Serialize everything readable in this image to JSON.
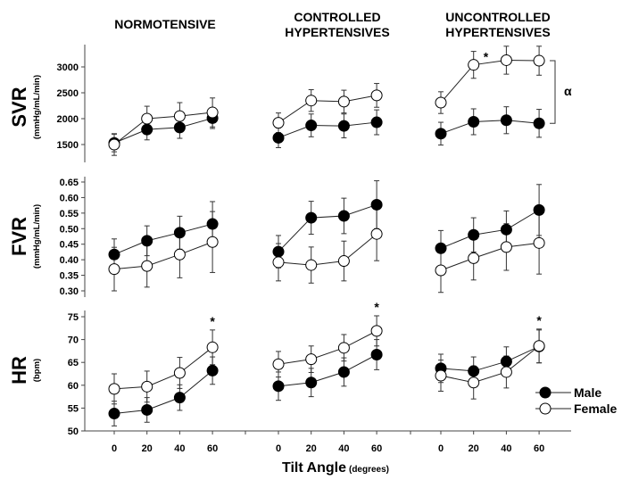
{
  "chart_data": {
    "type": "line",
    "x": [
      0,
      20,
      40,
      60
    ],
    "xlabel": "Tilt Angle",
    "xlabel_unit": "(degrees)",
    "groups": [
      {
        "title": [
          "NORMOTENSIVE"
        ]
      },
      {
        "title": [
          "CONTROLLED",
          "HYPERTENSIVES"
        ]
      },
      {
        "title": [
          "UNCONTROLLED",
          "HYPERTENSIVES"
        ]
      }
    ],
    "legend": {
      "position": "bottom-right",
      "entries": [
        {
          "name": "Male",
          "marker": "filled-circle"
        },
        {
          "name": "Female",
          "marker": "open-circle"
        }
      ]
    },
    "measures": [
      {
        "label": "SVR",
        "unit": "(mmHg/mL/min)",
        "ylim": [
          1160,
          3450
        ],
        "ticks": [
          1500,
          2000,
          2500,
          3000
        ],
        "tick_labels": [
          "1500",
          "2000",
          "2500",
          "3000"
        ],
        "panels": [
          {
            "male": [
              1530,
              1790,
              1830,
              2010
            ],
            "male_err": [
              170,
              200,
              210,
              200
            ],
            "female": [
              1500,
              2000,
              2050,
              2120
            ],
            "female_err": [
              210,
              240,
              260,
              280
            ],
            "stars": []
          },
          {
            "male": [
              1630,
              1870,
              1860,
              1930
            ],
            "male_err": [
              190,
              220,
              230,
              240
            ],
            "female": [
              1920,
              2350,
              2330,
              2450
            ],
            "female_err": [
              190,
              210,
              220,
              230
            ],
            "stars": []
          },
          {
            "male": [
              1710,
              1940,
              1970,
              1910
            ],
            "male_err": [
              220,
              250,
              260,
              270
            ],
            "female": [
              2310,
              3040,
              3130,
              3120
            ],
            "female_err": [
              210,
              260,
              270,
              280
            ],
            "stars": [
              {
                "x": 20,
                "label": "*"
              }
            ],
            "bracket": "α"
          }
        ]
      },
      {
        "label": "FVR",
        "unit": "(mmHg/mL/min)",
        "ylim": [
          0.28,
          0.67
        ],
        "ticks": [
          0.3,
          0.35,
          0.4,
          0.45,
          0.5,
          0.55,
          0.6,
          0.65
        ],
        "tick_labels": [
          "0.30",
          "0.35",
          "0.40",
          "0.45",
          "0.50",
          "0.55",
          "0.60",
          "0.65"
        ],
        "panels": [
          {
            "male": [
              0.417,
              0.461,
              0.487,
              0.515
            ],
            "male_err": [
              0.05,
              0.048,
              0.053,
              0.072
            ],
            "female": [
              0.37,
              0.38,
              0.417,
              0.457
            ],
            "female_err": [
              0.07,
              0.068,
              0.075,
              0.098
            ],
            "stars": []
          },
          {
            "male": [
              0.426,
              0.535,
              0.541,
              0.577
            ],
            "male_err": [
              0.052,
              0.053,
              0.057,
              0.077
            ],
            "female": [
              0.392,
              0.383,
              0.396,
              0.483
            ],
            "female_err": [
              0.06,
              0.058,
              0.064,
              0.086
            ],
            "stars": []
          },
          {
            "male": [
              0.437,
              0.48,
              0.497,
              0.56
            ],
            "male_err": [
              0.057,
              0.055,
              0.06,
              0.082
            ],
            "female": [
              0.366,
              0.405,
              0.441,
              0.454
            ],
            "female_err": [
              0.071,
              0.07,
              0.075,
              0.1
            ],
            "stars": []
          }
        ]
      },
      {
        "label": "HR",
        "unit": "(bpm)",
        "ylim": [
          50,
          76.5
        ],
        "ticks": [
          50,
          55,
          60,
          65,
          70,
          75
        ],
        "tick_labels": [
          "50",
          "55",
          "60",
          "65",
          "70",
          "75"
        ],
        "panels": [
          {
            "male": [
              53.8,
              54.6,
              57.3,
              63.2
            ],
            "male_err": [
              2.7,
              2.7,
              2.8,
              3.0
            ],
            "female": [
              59.2,
              59.7,
              62.7,
              68.3
            ],
            "female_err": [
              3.3,
              3.4,
              3.4,
              3.8
            ],
            "stars": [
              {
                "x": 60,
                "label": "*"
              }
            ]
          },
          {
            "male": [
              59.8,
              60.6,
              62.9,
              66.7
            ],
            "male_err": [
              3.1,
              3.1,
              3.1,
              3.3
            ],
            "female": [
              64.6,
              65.7,
              68.2,
              71.9
            ],
            "female_err": [
              2.8,
              2.9,
              2.9,
              3.3
            ],
            "stars": [
              {
                "x": 60,
                "label": "*"
              }
            ]
          },
          {
            "male": [
              63.7,
              63.1,
              65.2,
              68.5
            ],
            "male_err": [
              3.1,
              3.1,
              3.2,
              3.6
            ],
            "female": [
              62.1,
              60.6,
              62.9,
              68.6
            ],
            "female_err": [
              3.4,
              3.6,
              3.5,
              3.7
            ],
            "stars": [
              {
                "x": 60,
                "label": "*"
              }
            ]
          }
        ]
      }
    ]
  }
}
